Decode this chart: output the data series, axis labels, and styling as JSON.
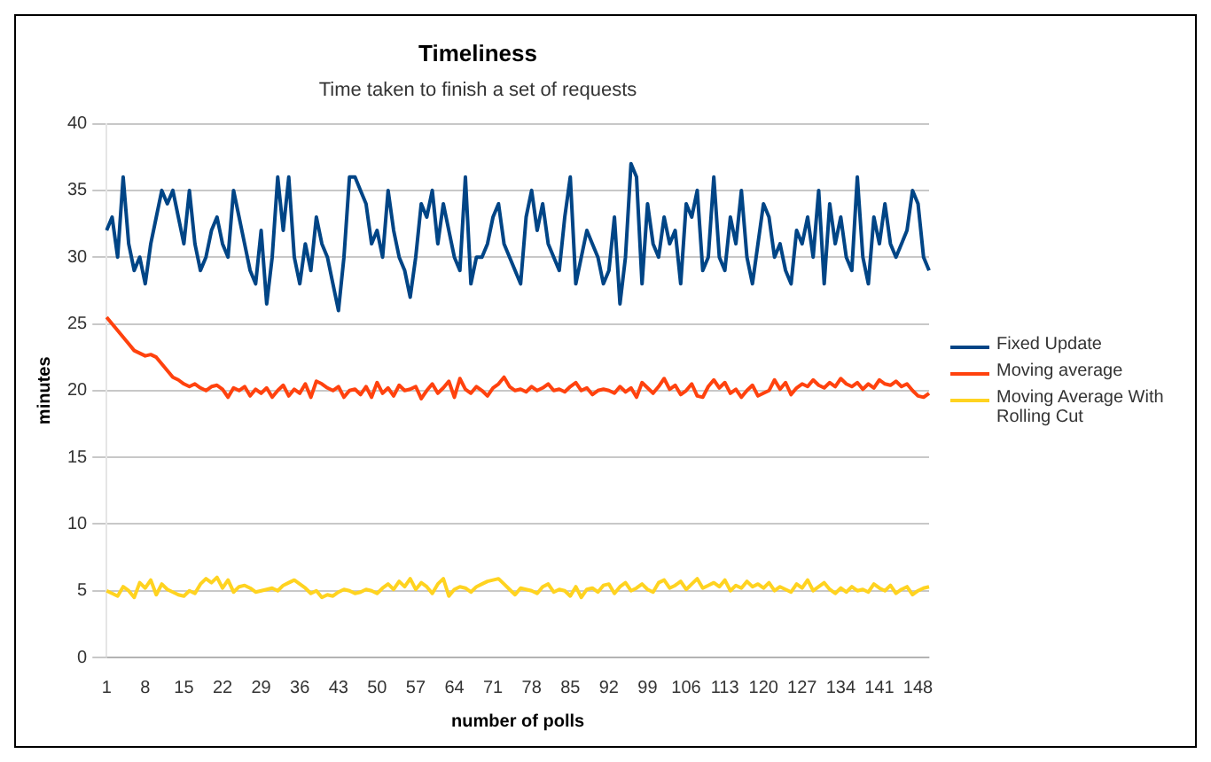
{
  "chart_data": {
    "type": "line",
    "title": "Timeliness",
    "subtitle": "Time taken to finish a set of requests",
    "xlabel": "number of polls",
    "ylabel": "minutes",
    "categories": [
      "1",
      null,
      null,
      null,
      null,
      null,
      null,
      "8",
      null,
      null,
      null,
      null,
      null,
      null,
      "15",
      null,
      null,
      null,
      null,
      null,
      null,
      "22",
      null,
      null,
      null,
      null,
      null,
      null,
      "29",
      null,
      null,
      null,
      null,
      null,
      null,
      "36",
      null,
      null,
      null,
      null,
      null,
      null,
      "43",
      null,
      null,
      null,
      null,
      null,
      null,
      "50",
      null,
      null,
      null,
      null,
      null,
      null,
      "57",
      null,
      null,
      null,
      null,
      null,
      null,
      "64",
      null,
      null,
      null,
      null,
      null,
      null,
      "71",
      null,
      null,
      null,
      null,
      null,
      null,
      "78",
      null,
      null,
      null,
      null,
      null,
      null,
      "85",
      null,
      null,
      null,
      null,
      null,
      null,
      "92",
      null,
      null,
      null,
      null,
      null,
      null,
      "99",
      null,
      null,
      null,
      null,
      null,
      null,
      "106",
      null,
      null,
      null,
      null,
      null,
      null,
      "113",
      null,
      null,
      null,
      null,
      null,
      null,
      "120",
      null,
      null,
      null,
      null,
      null,
      null,
      "127",
      null,
      null,
      null,
      null,
      null,
      null,
      "134",
      null,
      null,
      null,
      null,
      null,
      null,
      "141",
      null,
      null,
      null,
      null,
      null,
      null,
      "148",
      null,
      null
    ],
    "series": [
      {
        "name": "Fixed Update",
        "color": "#004586",
        "values": [
          32,
          33,
          30,
          36,
          31,
          29,
          30,
          28,
          31,
          33,
          35,
          34,
          35,
          33,
          31,
          35,
          31,
          29,
          30,
          32,
          33,
          31,
          30,
          35,
          33,
          31,
          29,
          28,
          32,
          26.5,
          30,
          36,
          32,
          36,
          30,
          28,
          31,
          29,
          33,
          31,
          30,
          28,
          26,
          30,
          36,
          36,
          35,
          34,
          31,
          32,
          30,
          35,
          32,
          30,
          29,
          27,
          30,
          34,
          33,
          35,
          31,
          34,
          32,
          30,
          29,
          36,
          28,
          30,
          30,
          31,
          33,
          34,
          31,
          30,
          29,
          28,
          33,
          35,
          32,
          34,
          31,
          30,
          29,
          33,
          36,
          28,
          30,
          32,
          31,
          30,
          28,
          29,
          33,
          26.5,
          30,
          37,
          36,
          28,
          34,
          31,
          30,
          33,
          31,
          32,
          28,
          34,
          33,
          35,
          29,
          30,
          36,
          30,
          29,
          33,
          31,
          35,
          30,
          28,
          31,
          34,
          33,
          30,
          31,
          29,
          28,
          32,
          31,
          33,
          30,
          35,
          28,
          34,
          31,
          33,
          30,
          29,
          36,
          30,
          28,
          33,
          31,
          34,
          31,
          30,
          31,
          32,
          35,
          34,
          30,
          29
        ]
      },
      {
        "name": "Moving average",
        "color": "#ff420e",
        "values": [
          25.5,
          25,
          24.5,
          24,
          23.5,
          23,
          22.8,
          22.6,
          22.7,
          22.5,
          22,
          21.5,
          21,
          20.8,
          20.5,
          20.3,
          20.5,
          20.2,
          20,
          20.3,
          20.4,
          20.1,
          19.5,
          20.2,
          20,
          20.3,
          19.6,
          20.1,
          19.8,
          20.2,
          19.5,
          20,
          20.4,
          19.6,
          20.1,
          19.8,
          20.5,
          19.5,
          20.7,
          20.5,
          20.2,
          20,
          20.3,
          19.5,
          20,
          20.1,
          19.7,
          20.3,
          19.5,
          20.6,
          19.8,
          20.2,
          19.6,
          20.4,
          20,
          20.1,
          20.3,
          19.4,
          20,
          20.5,
          19.8,
          20.2,
          20.7,
          19.5,
          20.9,
          20.1,
          19.8,
          20.3,
          20,
          19.6,
          20.2,
          20.5,
          21,
          20.3,
          20,
          20.1,
          19.9,
          20.3,
          20,
          20.2,
          20.5,
          20,
          20.1,
          19.9,
          20.3,
          20.6,
          20,
          20.2,
          19.7,
          20,
          20.1,
          20,
          19.8,
          20.3,
          19.9,
          20.2,
          19.5,
          20.6,
          20.2,
          19.8,
          20.3,
          20.9,
          20.1,
          20.4,
          19.7,
          20,
          20.5,
          19.6,
          19.5,
          20.3,
          20.8,
          20.2,
          20.6,
          19.8,
          20.1,
          19.5,
          20,
          20.4,
          19.6,
          19.8,
          20,
          20.8,
          20.1,
          20.6,
          19.7,
          20.2,
          20.5,
          20.3,
          20.8,
          20.4,
          20.2,
          20.6,
          20.3,
          20.9,
          20.5,
          20.3,
          20.6,
          20.1,
          20.5,
          20.2,
          20.8,
          20.5,
          20.4,
          20.7,
          20.3,
          20.5,
          20,
          19.6,
          19.5,
          19.8
        ]
      },
      {
        "name": "Moving Average With Rolling Cut",
        "color": "#ffd320",
        "values": [
          5,
          4.8,
          4.6,
          5.3,
          5,
          4.5,
          5.6,
          5.2,
          5.8,
          4.7,
          5.5,
          5.1,
          4.9,
          4.7,
          4.6,
          5,
          4.8,
          5.5,
          5.9,
          5.6,
          6,
          5.2,
          5.8,
          4.9,
          5.3,
          5.4,
          5.2,
          4.9,
          5,
          5.1,
          5.2,
          5,
          5.4,
          5.6,
          5.8,
          5.5,
          5.2,
          4.8,
          5,
          4.5,
          4.7,
          4.6,
          4.9,
          5.1,
          5,
          4.8,
          4.9,
          5.1,
          5,
          4.8,
          5.2,
          5.5,
          5.1,
          5.7,
          5.3,
          5.9,
          5.1,
          5.6,
          5.3,
          4.8,
          5.5,
          5.9,
          4.6,
          5.1,
          5.3,
          5.2,
          4.9,
          5.3,
          5.5,
          5.7,
          5.8,
          5.9,
          5.5,
          5.1,
          4.7,
          5.2,
          5.1,
          5,
          4.8,
          5.3,
          5.5,
          4.9,
          5.1,
          5,
          4.6,
          5.3,
          4.5,
          5.1,
          5.2,
          4.9,
          5.4,
          5.5,
          4.8,
          5.3,
          5.6,
          5,
          5.2,
          5.5,
          5.1,
          4.9,
          5.6,
          5.8,
          5.2,
          5.4,
          5.7,
          5.1,
          5.5,
          5.9,
          5.2,
          5.4,
          5.6,
          5.3,
          5.8,
          5,
          5.4,
          5.2,
          5.7,
          5.3,
          5.5,
          5.2,
          5.6,
          5,
          5.3,
          5.1,
          4.9,
          5.5,
          5.2,
          5.8,
          5,
          5.3,
          5.6,
          5.1,
          4.8,
          5.2,
          4.9,
          5.3,
          5,
          5.1,
          4.9,
          5.5,
          5.2,
          5,
          5.4,
          4.8,
          5.1,
          5.3,
          4.7,
          5,
          5.2,
          5.3
        ]
      }
    ],
    "ylim": [
      0,
      40
    ],
    "yticks": [
      0,
      5,
      10,
      15,
      20,
      25,
      30,
      35,
      40
    ],
    "grid": "y",
    "legend": "right",
    "marker": "none",
    "line_style": "solid"
  }
}
